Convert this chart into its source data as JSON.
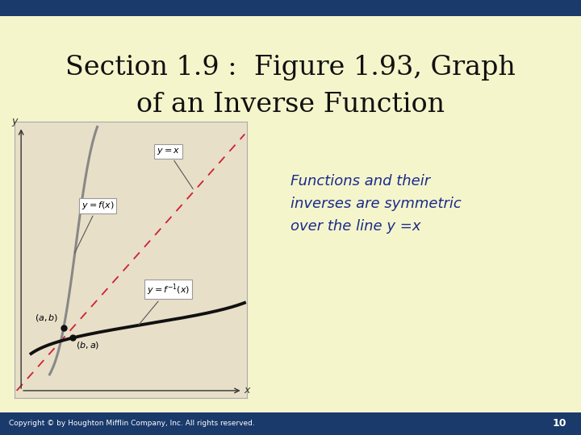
{
  "title_line1": "Section 1.9 :  Figure 1.93, Graph",
  "title_line2": "of an Inverse Function",
  "title_color": "#111111",
  "title_fontsize": 24,
  "slide_bg": "#f5f5cc",
  "top_bar_color": "#1a3a6b",
  "bottom_bar_color": "#1a3a6b",
  "graph_bg": "#e8dfc8",
  "graph_border": "#aaaaaa",
  "annotation_text": "Functions and their\ninverses are symmetric\nover the line y =x",
  "annotation_color": "#1a2a8b",
  "annotation_fontsize": 13,
  "copyright_text": "Copyright © by Houghton Mifflin Company, Inc. All rights reserved.",
  "copyright_color": "#ffffff",
  "page_number": "10",
  "curve_f_color": "#888888",
  "curve_finv_color": "#111111",
  "dashed_line_color": "#cc2233",
  "axes_color": "#333333",
  "label_box_color": "#ffffff",
  "dot_color": "#111111"
}
